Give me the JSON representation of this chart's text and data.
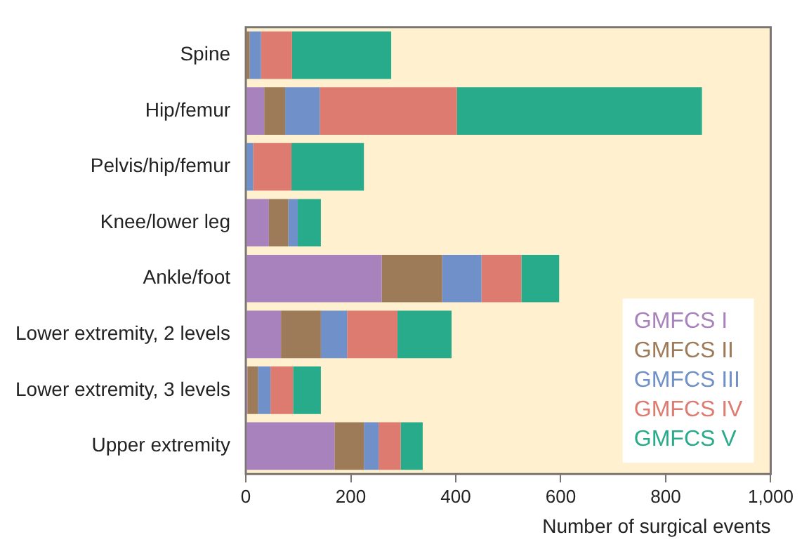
{
  "chart_data": {
    "type": "bar",
    "orientation": "horizontal",
    "stacked": true,
    "xlabel": "Number of surgical events",
    "categories": [
      "Spine",
      "Hip/femur",
      "Pelvis/hip/femur",
      "Knee/lower leg",
      "Ankle/foot",
      "Lower extremity, 2 levels",
      "Lower extremity, 3 levels",
      "Upper extremity"
    ],
    "series": [
      {
        "name": "GMFCS I",
        "color": "#a882bd",
        "values": [
          0,
          35,
          0,
          44,
          259,
          67,
          3,
          169
        ]
      },
      {
        "name": "GMFCS II",
        "color": "#9e7b58",
        "values": [
          7,
          40,
          0,
          37,
          115,
          76,
          20,
          56
        ]
      },
      {
        "name": "GMFCS III",
        "color": "#6f90c8",
        "values": [
          22,
          66,
          14,
          18,
          75,
          50,
          24,
          28
        ]
      },
      {
        "name": "GMFCS IV",
        "color": "#de7b70",
        "values": [
          59,
          261,
          73,
          0,
          76,
          96,
          43,
          42
        ]
      },
      {
        "name": "GMFCS V",
        "color": "#28ab8a",
        "values": [
          189,
          467,
          138,
          44,
          72,
          103,
          53,
          42
        ]
      }
    ],
    "xlim": [
      0,
      1000
    ],
    "xticks": [
      0,
      200,
      400,
      600,
      800,
      {
        "value": 1000,
        "label": "1,000"
      }
    ],
    "grid": false,
    "legend": "bottom right"
  }
}
